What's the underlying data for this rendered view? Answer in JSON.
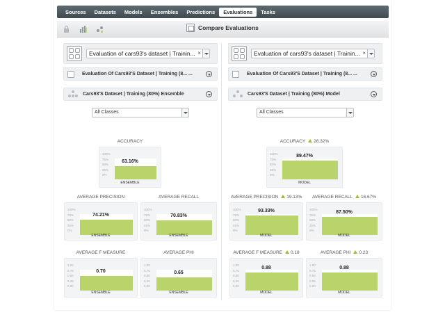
{
  "nav": {
    "tabs": [
      "Sources",
      "Datasets",
      "Models",
      "Ensembles",
      "Predictions",
      "Evaluations",
      "Tasks"
    ],
    "active": "Evaluations"
  },
  "toolbar": {
    "title": "Compare Evaluations",
    "icons": [
      "lock-icon",
      "bar-chart-icon",
      "network-chart-icon"
    ]
  },
  "left": {
    "evaluation_select": "Evaluation of cars93's dataset | Trainin...",
    "evaluation_name": "Evaluation Of Cars93'S Dataset | Training (8... ...",
    "model_name": "Cars93'S Dataset | Training (80%) Ensemble",
    "classes": "All Classes",
    "metrics": {
      "accuracy": {
        "title": "ACCURACY",
        "value": "63.16%",
        "fraction": 0.6316,
        "label": "ENSEMBLE"
      },
      "precision": {
        "title": "AVERAGE PRECISION",
        "value": "74.21%",
        "fraction": 0.7421,
        "label": "ENSEMBLE"
      },
      "recall": {
        "title": "AVERAGE RECALL",
        "value": "70.83%",
        "fraction": 0.7083,
        "label": "ENSEMBLE"
      },
      "fmeasure": {
        "title": "AVERAGE F MEASURE",
        "value": "0.70",
        "fraction": 0.7,
        "label": "ENSEMBLE"
      },
      "phi": {
        "title": "AVERAGE PHI",
        "value": "0.65",
        "fraction": 0.65,
        "label": "ENSEMBLE"
      }
    }
  },
  "right": {
    "evaluation_select": "Evaluation of cars93's dataset | Trainin...",
    "evaluation_name": "Evaluation Of Cars93'S Dataset | Training (8... ...",
    "model_name": "Cars93'S Dataset | Training (80%) Model",
    "classes": "All Classes",
    "metrics": {
      "accuracy": {
        "title": "ACCURACY",
        "delta": "26.32%",
        "value": "89.47%",
        "fraction": 0.8947,
        "label": "MODEL"
      },
      "precision": {
        "title": "AVERAGE PRECISION",
        "delta": "19.13%",
        "value": "93.33%",
        "fraction": 0.9333,
        "label": "MODEL"
      },
      "recall": {
        "title": "AVERAGE RECALL",
        "delta": "16.67%",
        "value": "87.50%",
        "fraction": 0.875,
        "label": "MODEL"
      },
      "fmeasure": {
        "title": "AVERAGE F MEASURE",
        "delta": "0.18",
        "value": "0.88",
        "fraction": 0.88,
        "label": "MODEL"
      },
      "phi": {
        "title": "AVERAGE PHI",
        "delta": "0.23",
        "value": "0.88",
        "fraction": 0.88,
        "label": "MODEL"
      }
    }
  },
  "percent_ticks": [
    "100%",
    "75%",
    "50%",
    "25%",
    "0%"
  ],
  "decimal_ticks": [
    "1.00",
    "0.75",
    "0.50",
    "0.25",
    "0.00"
  ],
  "colors": {
    "bar": "#b9d46a",
    "delta_arrow": "#9cbd3b",
    "nav": "#4a555b"
  }
}
